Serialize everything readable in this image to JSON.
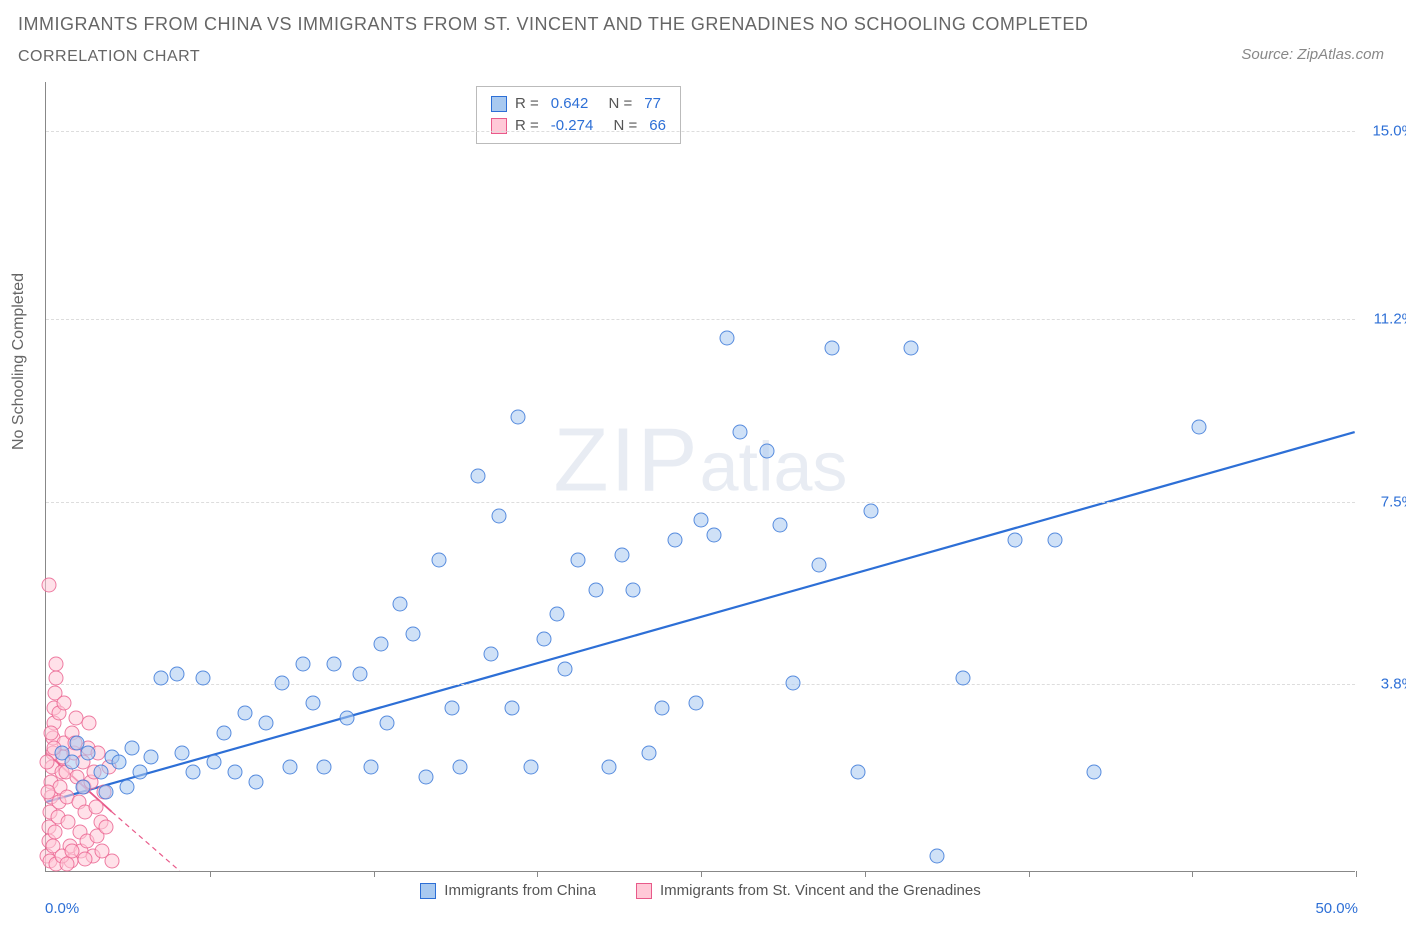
{
  "title_line1": "IMMIGRANTS FROM CHINA VS IMMIGRANTS FROM ST. VINCENT AND THE GRENADINES NO SCHOOLING COMPLETED",
  "title_line2": "CORRELATION CHART",
  "source_label": "Source:",
  "source_name": "ZipAtlas.com",
  "yaxis_label": "No Schooling Completed",
  "watermark_zip": "ZIP",
  "watermark_atlas": "atlas",
  "chart": {
    "type": "scatter",
    "xlim": [
      0,
      50
    ],
    "ylim": [
      0,
      16
    ],
    "xmin_label": "0.0%",
    "xmax_label": "50.0%",
    "xtick_positions": [
      6.25,
      12.5,
      18.75,
      25.0,
      31.25,
      37.5,
      43.75,
      50.0
    ],
    "ytick_values": [
      3.8,
      7.5,
      11.2,
      15.0
    ],
    "ytick_labels": [
      "3.8%",
      "7.5%",
      "11.2%",
      "15.0%"
    ],
    "grid_color": "#dddddd",
    "axis_color": "#888888",
    "background_color": "#ffffff",
    "label_fontsize": 15,
    "title_fontsize": 18
  },
  "legend_top": {
    "series": [
      {
        "color_key": "blue",
        "r_label": "R =",
        "r_value": "0.642",
        "n_label": "N =",
        "n_value": "77"
      },
      {
        "color_key": "pink",
        "r_label": "R =",
        "r_value": "-0.274",
        "n_label": "N =",
        "n_value": "66"
      }
    ]
  },
  "legend_bottom": {
    "items": [
      {
        "color_key": "blue",
        "label": "Immigrants from China"
      },
      {
        "color_key": "pink",
        "label": "Immigrants from St. Vincent and the Grenadines"
      }
    ]
  },
  "series": {
    "blue": {
      "color_fill": "#a8c9f0",
      "color_stroke": "#2d6fd6",
      "marker_size": 15,
      "regression": {
        "x1": 0,
        "y1": 1.4,
        "x2": 50,
        "y2": 8.9,
        "stroke": "#2d6fd6",
        "width": 2.2
      },
      "points": [
        [
          0.6,
          2.4
        ],
        [
          1.0,
          2.2
        ],
        [
          1.2,
          2.6
        ],
        [
          1.4,
          1.7
        ],
        [
          1.6,
          2.4
        ],
        [
          2.1,
          2.0
        ],
        [
          2.3,
          1.6
        ],
        [
          2.5,
          2.3
        ],
        [
          2.8,
          2.2
        ],
        [
          3.1,
          1.7
        ],
        [
          3.3,
          2.5
        ],
        [
          3.6,
          2.0
        ],
        [
          4.0,
          2.3
        ],
        [
          4.4,
          3.9
        ],
        [
          5.0,
          4.0
        ],
        [
          5.2,
          2.4
        ],
        [
          5.6,
          2.0
        ],
        [
          6.0,
          3.9
        ],
        [
          6.4,
          2.2
        ],
        [
          6.8,
          2.8
        ],
        [
          7.2,
          2.0
        ],
        [
          7.6,
          3.2
        ],
        [
          8.0,
          1.8
        ],
        [
          8.4,
          3.0
        ],
        [
          9.0,
          3.8
        ],
        [
          9.3,
          2.1
        ],
        [
          9.8,
          4.2
        ],
        [
          10.2,
          3.4
        ],
        [
          10.6,
          2.1
        ],
        [
          11.0,
          4.2
        ],
        [
          11.5,
          3.1
        ],
        [
          12.0,
          4.0
        ],
        [
          12.4,
          2.1
        ],
        [
          13.0,
          3.0
        ],
        [
          13.5,
          5.4
        ],
        [
          14.0,
          4.8
        ],
        [
          14.5,
          1.9
        ],
        [
          15.0,
          6.3
        ],
        [
          15.5,
          3.3
        ],
        [
          15.8,
          2.1
        ],
        [
          16.5,
          8.0
        ],
        [
          17.0,
          4.4
        ],
        [
          17.3,
          7.2
        ],
        [
          17.8,
          3.3
        ],
        [
          18.0,
          9.2
        ],
        [
          18.5,
          2.1
        ],
        [
          19.0,
          4.7
        ],
        [
          19.8,
          4.1
        ],
        [
          20.3,
          6.3
        ],
        [
          21.0,
          5.7
        ],
        [
          21.5,
          2.1
        ],
        [
          22.0,
          6.4
        ],
        [
          22.4,
          5.7
        ],
        [
          23.0,
          2.4
        ],
        [
          23.5,
          3.3
        ],
        [
          24.0,
          6.7
        ],
        [
          24.8,
          3.4
        ],
        [
          25.0,
          7.1
        ],
        [
          25.5,
          6.8
        ],
        [
          26.0,
          10.8
        ],
        [
          26.5,
          8.9
        ],
        [
          27.5,
          8.5
        ],
        [
          28.0,
          7.0
        ],
        [
          28.5,
          3.8
        ],
        [
          29.5,
          6.2
        ],
        [
          30.0,
          10.6
        ],
        [
          31.0,
          2.0
        ],
        [
          31.5,
          7.3
        ],
        [
          33.0,
          10.6
        ],
        [
          34.0,
          0.3
        ],
        [
          35.0,
          3.9
        ],
        [
          37.0,
          6.7
        ],
        [
          38.5,
          6.7
        ],
        [
          40.0,
          2.0
        ],
        [
          44.0,
          9.0
        ],
        [
          19.5,
          5.2
        ],
        [
          12.8,
          4.6
        ]
      ]
    },
    "pink": {
      "color_fill": "#ffc9d7",
      "color_stroke": "#e85a8a",
      "marker_size": 15,
      "regression_solid": {
        "x1": 0,
        "y1": 2.4,
        "x2": 2.5,
        "y2": 1.2,
        "stroke": "#e85a8a",
        "width": 1.8
      },
      "regression_dashed": {
        "x1": 2.5,
        "y1": 1.2,
        "x2": 5.1,
        "y2": 0.0,
        "stroke": "#e85a8a",
        "width": 1.2,
        "dash": "5,4"
      },
      "points": [
        [
          0.05,
          0.3
        ],
        [
          0.1,
          0.6
        ],
        [
          0.12,
          0.9
        ],
        [
          0.15,
          1.2
        ],
        [
          0.18,
          1.5
        ],
        [
          0.2,
          1.8
        ],
        [
          0.22,
          2.1
        ],
        [
          0.25,
          2.4
        ],
        [
          0.28,
          2.7
        ],
        [
          0.3,
          3.0
        ],
        [
          0.32,
          3.3
        ],
        [
          0.35,
          3.6
        ],
        [
          0.38,
          3.9
        ],
        [
          0.4,
          4.2
        ],
        [
          0.15,
          0.2
        ],
        [
          0.25,
          0.5
        ],
        [
          0.35,
          0.8
        ],
        [
          0.45,
          1.1
        ],
        [
          0.5,
          1.4
        ],
        [
          0.55,
          1.7
        ],
        [
          0.6,
          2.0
        ],
        [
          0.65,
          2.3
        ],
        [
          0.7,
          2.6
        ],
        [
          0.75,
          2.0
        ],
        [
          0.8,
          1.5
        ],
        [
          0.85,
          1.0
        ],
        [
          0.9,
          0.5
        ],
        [
          0.95,
          0.2
        ],
        [
          1.0,
          2.8
        ],
        [
          1.05,
          2.4
        ],
        [
          1.1,
          2.6
        ],
        [
          1.15,
          3.1
        ],
        [
          1.2,
          1.9
        ],
        [
          1.25,
          1.4
        ],
        [
          1.3,
          0.8
        ],
        [
          1.35,
          0.4
        ],
        [
          1.4,
          2.2
        ],
        [
          1.45,
          1.7
        ],
        [
          1.5,
          1.2
        ],
        [
          1.55,
          0.6
        ],
        [
          1.6,
          2.5
        ],
        [
          1.65,
          3.0
        ],
        [
          1.7,
          1.8
        ],
        [
          1.8,
          0.3
        ],
        [
          1.85,
          2.0
        ],
        [
          1.9,
          1.3
        ],
        [
          1.95,
          0.7
        ],
        [
          2.0,
          2.4
        ],
        [
          2.1,
          1.0
        ],
        [
          2.15,
          0.4
        ],
        [
          2.2,
          1.6
        ],
        [
          2.3,
          0.9
        ],
        [
          2.4,
          2.1
        ],
        [
          2.5,
          0.2
        ],
        [
          0.1,
          5.8
        ],
        [
          0.4,
          0.15
        ],
        [
          0.6,
          0.3
        ],
        [
          0.8,
          0.15
        ],
        [
          1.0,
          0.4
        ],
        [
          1.5,
          0.25
        ],
        [
          0.2,
          2.8
        ],
        [
          0.3,
          2.5
        ],
        [
          0.5,
          3.2
        ],
        [
          0.7,
          3.4
        ],
        [
          0.05,
          2.2
        ],
        [
          0.08,
          1.6
        ]
      ]
    }
  }
}
